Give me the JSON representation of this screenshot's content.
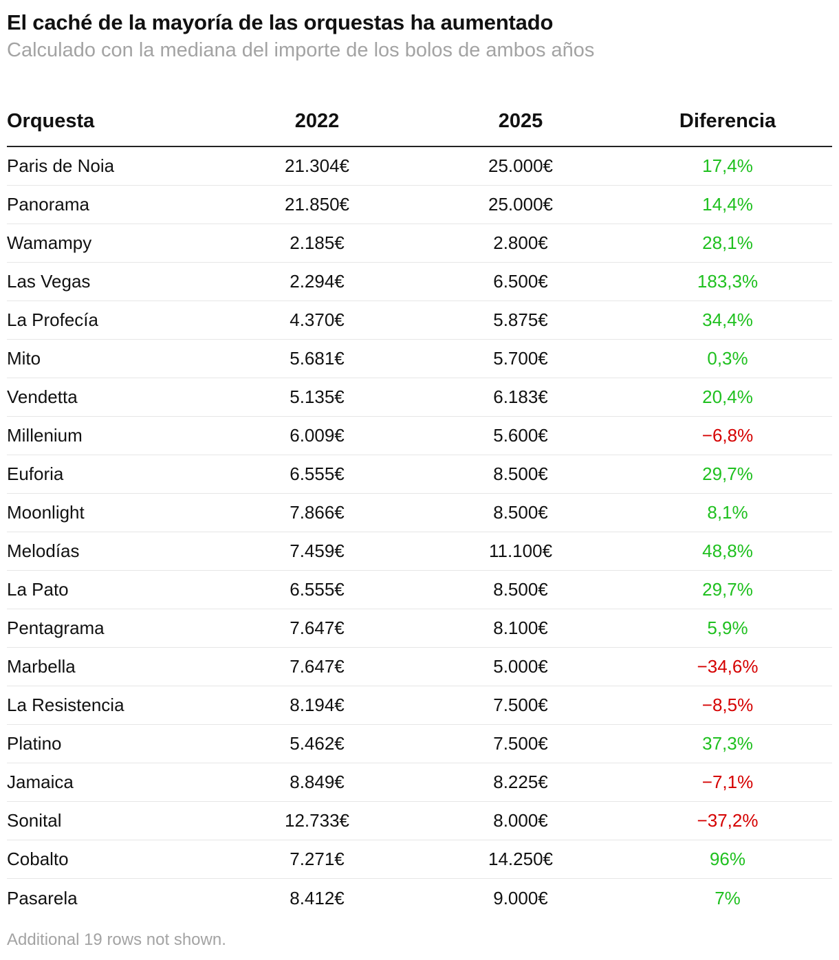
{
  "header": {
    "title": "El caché de la mayoría de las orquestas ha aumentado",
    "subtitle": "Calculado con la mediana del importe de los bolos de ambos años"
  },
  "colors": {
    "positive": "#1fc01f",
    "negative": "#d50000",
    "text": "#111111",
    "muted": "#a3a3a3"
  },
  "chart_data": {
    "type": "table",
    "columns": [
      "Orquesta",
      "2022",
      "2025",
      "Diferencia"
    ],
    "rows": [
      {
        "name": "Paris de Noia",
        "y2022": "21.304€",
        "y2025": "25.000€",
        "diff": "17,4%",
        "sign": "pos"
      },
      {
        "name": "Panorama",
        "y2022": "21.850€",
        "y2025": "25.000€",
        "diff": "14,4%",
        "sign": "pos"
      },
      {
        "name": "Wamampy",
        "y2022": "2.185€",
        "y2025": "2.800€",
        "diff": "28,1%",
        "sign": "pos"
      },
      {
        "name": "Las Vegas",
        "y2022": "2.294€",
        "y2025": "6.500€",
        "diff": "183,3%",
        "sign": "pos"
      },
      {
        "name": "La Profecía",
        "y2022": "4.370€",
        "y2025": "5.875€",
        "diff": "34,4%",
        "sign": "pos"
      },
      {
        "name": "Mito",
        "y2022": "5.681€",
        "y2025": "5.700€",
        "diff": "0,3%",
        "sign": "pos"
      },
      {
        "name": "Vendetta",
        "y2022": "5.135€",
        "y2025": "6.183€",
        "diff": "20,4%",
        "sign": "pos"
      },
      {
        "name": "Millenium",
        "y2022": "6.009€",
        "y2025": "5.600€",
        "diff": "−6,8%",
        "sign": "neg"
      },
      {
        "name": "Euforia",
        "y2022": "6.555€",
        "y2025": "8.500€",
        "diff": "29,7%",
        "sign": "pos"
      },
      {
        "name": "Moonlight",
        "y2022": "7.866€",
        "y2025": "8.500€",
        "diff": "8,1%",
        "sign": "pos"
      },
      {
        "name": "Melodías",
        "y2022": "7.459€",
        "y2025": "11.100€",
        "diff": "48,8%",
        "sign": "pos"
      },
      {
        "name": "La Pato",
        "y2022": "6.555€",
        "y2025": "8.500€",
        "diff": "29,7%",
        "sign": "pos"
      },
      {
        "name": "Pentagrama",
        "y2022": "7.647€",
        "y2025": "8.100€",
        "diff": "5,9%",
        "sign": "pos"
      },
      {
        "name": "Marbella",
        "y2022": "7.647€",
        "y2025": "5.000€",
        "diff": "−34,6%",
        "sign": "neg"
      },
      {
        "name": "La Resistencia",
        "y2022": "8.194€",
        "y2025": "7.500€",
        "diff": "−8,5%",
        "sign": "neg"
      },
      {
        "name": "Platino",
        "y2022": "5.462€",
        "y2025": "7.500€",
        "diff": "37,3%",
        "sign": "pos"
      },
      {
        "name": "Jamaica",
        "y2022": "8.849€",
        "y2025": "8.225€",
        "diff": "−7,1%",
        "sign": "neg"
      },
      {
        "name": "Sonital",
        "y2022": "12.733€",
        "y2025": "8.000€",
        "diff": "−37,2%",
        "sign": "neg"
      },
      {
        "name": "Cobalto",
        "y2022": "7.271€",
        "y2025": "14.250€",
        "diff": "96%",
        "sign": "pos"
      },
      {
        "name": "Pasarela",
        "y2022": "8.412€",
        "y2025": "9.000€",
        "diff": "7%",
        "sign": "pos"
      }
    ]
  },
  "footnote": "Additional 19 rows not shown."
}
